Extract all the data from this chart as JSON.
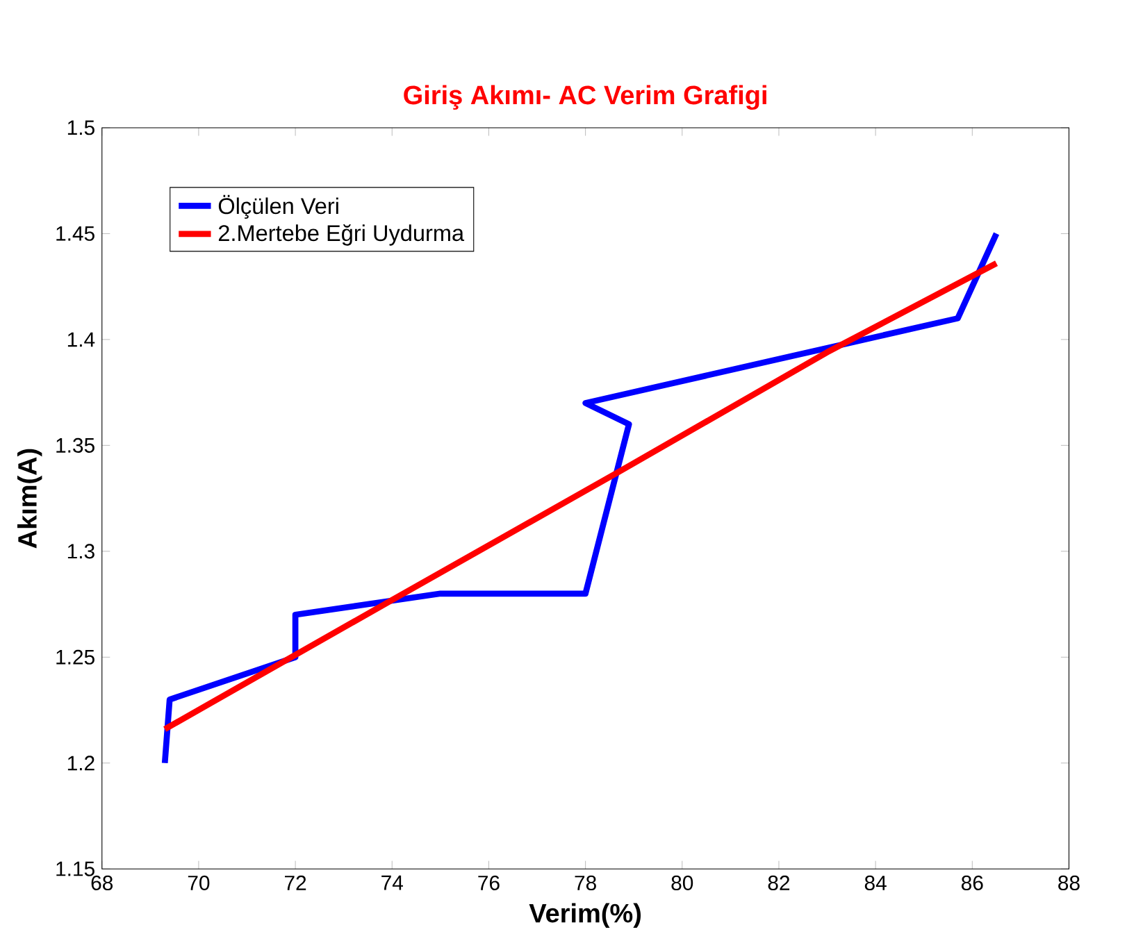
{
  "chart_data": {
    "type": "line",
    "title": "Giriş Akımı- AC Verim Grafigi",
    "xlabel": "Verim(%)",
    "ylabel": "Akım(A)",
    "series": [
      {
        "name": "Ölçülen Veri",
        "color": "#0000ff",
        "x": [
          69.3,
          69.4,
          72.0,
          72.0,
          75.0,
          78.0,
          78.9,
          78.0,
          85.7,
          86.5
        ],
        "values": [
          1.2,
          1.23,
          1.25,
          1.27,
          1.28,
          1.28,
          1.36,
          1.37,
          1.41,
          1.45
        ]
      },
      {
        "name": "2.Mertebe Eğri Uydurma",
        "color": "#ff0000",
        "x": [
          69.3,
          74.0,
          78.65,
          83.0,
          86.5
        ],
        "values": [
          1.216,
          1.277,
          1.337,
          1.394,
          1.436
        ]
      }
    ],
    "xlim": [
      68,
      88
    ],
    "ylim": [
      1.15,
      1.5
    ],
    "xticks": [
      68,
      70,
      72,
      74,
      76,
      78,
      80,
      82,
      84,
      86,
      88
    ],
    "yticks": [
      1.15,
      1.2,
      1.25,
      1.3,
      1.35,
      1.4,
      1.45,
      1.5
    ],
    "legend": "top left",
    "grid": false,
    "marker": "none",
    "line_style": "solid"
  }
}
